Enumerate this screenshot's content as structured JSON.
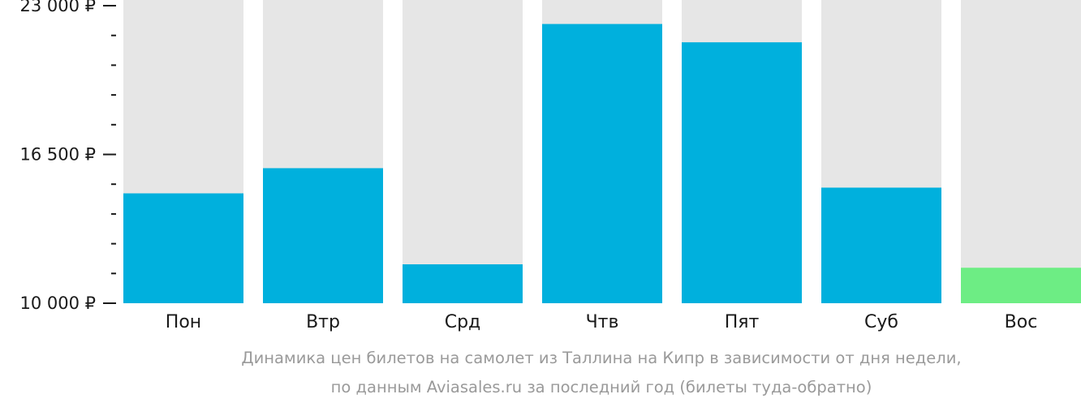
{
  "chart_data": {
    "type": "bar",
    "categories": [
      "Пон",
      "Втр",
      "Срд",
      "Чтв",
      "Пят",
      "Суб",
      "Вос"
    ],
    "values": [
      14800,
      15900,
      11700,
      22200,
      21400,
      15050,
      11550
    ],
    "ylim": [
      10000,
      23000
    ],
    "yticks": [
      {
        "value": 23000,
        "label": "23 000 ₽"
      },
      {
        "value": 16500,
        "label": "16 500 ₽"
      },
      {
        "value": 10000,
        "label": "10 000 ₽"
      }
    ],
    "minor_tick_step": 1300,
    "colors": {
      "bar": "#00b0dd",
      "highlight": "#6ded84",
      "track": "#e6e6e6",
      "axis": "#1a1a1a"
    },
    "highlight_index": 6,
    "caption": [
      "Динамика цен билетов на самолет из Таллина на Кипр в зависимости от дня недели,",
      "по данным Aviasales.ru за последний год (билеты туда-обратно)"
    ]
  }
}
